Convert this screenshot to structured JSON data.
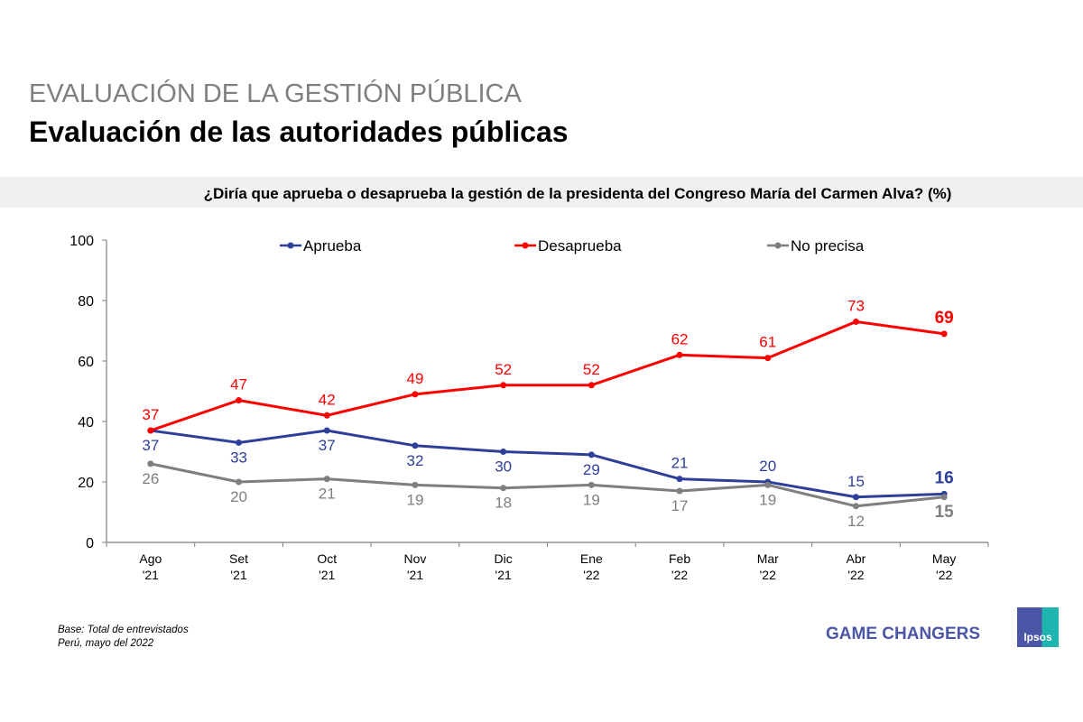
{
  "header": {
    "supertitle": "EVALUACIÓN DE LA GESTIÓN PÚBLICA",
    "title": "Evaluación de las autoridades públicas"
  },
  "question": "¿Diría que aprueba o desaprueba la gestión de la presidenta del Congreso María del Carmen Alva? (%)",
  "chart_data": {
    "type": "line",
    "categories": [
      [
        "Ago",
        "'21"
      ],
      [
        "Set",
        "'21"
      ],
      [
        "Oct",
        "'21"
      ],
      [
        "Nov",
        "'21"
      ],
      [
        "Dic",
        "'21"
      ],
      [
        "Ene",
        "'22"
      ],
      [
        "Feb",
        "'22"
      ],
      [
        "Mar",
        "'22"
      ],
      [
        "Abr",
        "'22"
      ],
      [
        "May",
        "'22"
      ]
    ],
    "ylim": [
      0,
      100
    ],
    "yticks": [
      0,
      20,
      40,
      60,
      80,
      100
    ],
    "grid": false,
    "legend": "top",
    "series": [
      {
        "name": "Aprueba",
        "color": "#2e3f9a",
        "values": [
          37,
          33,
          37,
          32,
          30,
          29,
          21,
          20,
          15,
          16
        ]
      },
      {
        "name": "Desaprueba",
        "color": "#ff0000",
        "values": [
          37,
          47,
          42,
          49,
          52,
          52,
          62,
          61,
          73,
          69
        ]
      },
      {
        "name": "No precisa",
        "color": "#7f7f7f",
        "values": [
          26,
          20,
          21,
          19,
          18,
          19,
          17,
          19,
          12,
          15
        ]
      }
    ]
  },
  "footer": {
    "base": "Base: Total de entrevistados",
    "place": "Perú, mayo del 2022",
    "tagline": "GAME CHANGERS",
    "logo": "Ipsos"
  }
}
